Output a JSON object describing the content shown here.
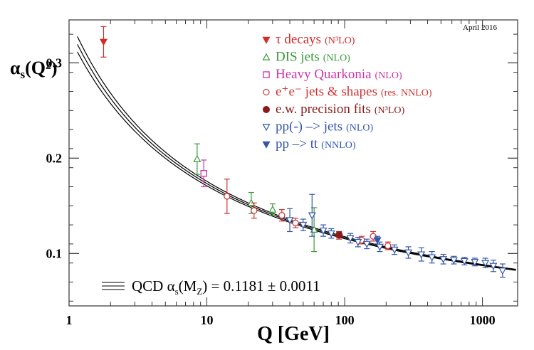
{
  "chart_data": {
    "type": "scatter",
    "date_label": "April 2016",
    "ylabel_main": "α",
    "ylabel_sub": "s",
    "ylabel_tail": "(Q²)",
    "xlabel": "Q [GeV]",
    "x_scale": "log",
    "xlim": [
      1,
      1800
    ],
    "ylim": [
      0.045,
      0.345
    ],
    "x_ticks": [
      {
        "value": 1,
        "label": "1"
      },
      {
        "value": 10,
        "label": "10"
      },
      {
        "value": 100,
        "label": "100"
      },
      {
        "value": 1000,
        "label": "1000"
      }
    ],
    "y_ticks": [
      {
        "value": 0.1,
        "label": "0.1"
      },
      {
        "value": 0.2,
        "label": "0.2"
      },
      {
        "value": 0.3,
        "label": "0.3"
      }
    ],
    "band_label": "QCD α",
    "band_label_sub": "s",
    "band_label_mid": "(M",
    "band_label_sub2": "Z",
    "band_label_tail": ") = 0.1181 ± 0.0011",
    "qcd_alpha_mz": 0.1181,
    "qcd_alpha_unc": 0.0011,
    "legend_placement": "top-center",
    "series": [
      {
        "name": "τ decays",
        "order": "(N³LO)",
        "marker": "tri-down-filled",
        "color": "#d42a2a",
        "points": [
          {
            "x": 1.78,
            "y": 0.322,
            "err": 0.016
          }
        ]
      },
      {
        "name": "DIS jets",
        "order": "(NLO)",
        "marker": "tri-up-open",
        "color": "#3a9a3a",
        "points": [
          {
            "x": 8.5,
            "y": 0.199,
            "err": 0.016
          },
          {
            "x": 21,
            "y": 0.153,
            "err": 0.011
          },
          {
            "x": 30,
            "y": 0.146,
            "err": 0.006
          },
          {
            "x": 60,
            "y": 0.125,
            "err": 0.023
          }
        ]
      },
      {
        "name": "Heavy Quarkonia",
        "order": "(NLO)",
        "marker": "square-open",
        "color": "#cc33aa",
        "points": [
          {
            "x": 9.5,
            "y": 0.184,
            "err": 0.014
          }
        ]
      },
      {
        "name": "e⁺e⁻ jets & shapes",
        "order": "(res. NNLO)",
        "marker": "circle-open",
        "color": "#cc3333",
        "points": [
          {
            "x": 14,
            "y": 0.16,
            "err": 0.018
          },
          {
            "x": 22,
            "y": 0.145,
            "err": 0.008
          },
          {
            "x": 35,
            "y": 0.14,
            "err": 0.006
          },
          {
            "x": 44,
            "y": 0.132,
            "err": 0.005
          },
          {
            "x": 91,
            "y": 0.119,
            "err": 0.004
          },
          {
            "x": 133,
            "y": 0.114,
            "err": 0.004
          },
          {
            "x": 161,
            "y": 0.118,
            "err": 0.005
          },
          {
            "x": 206,
            "y": 0.108,
            "err": 0.004
          }
        ]
      },
      {
        "name": "e.w. precision fits",
        "order": "(N³LO)",
        "marker": "circle-filled",
        "color": "#8b1a1a",
        "points": [
          {
            "x": 91.2,
            "y": 0.1196,
            "err": 0.003
          }
        ]
      },
      {
        "name": "pp(-) –> jets",
        "order": "(NLO)",
        "marker": "tri-down-open",
        "color": "#3355aa",
        "points": [
          {
            "x": 40,
            "y": 0.135,
            "err": 0.012
          },
          {
            "x": 50,
            "y": 0.13,
            "err": 0.006
          },
          {
            "x": 58,
            "y": 0.14,
            "err": 0.022
          },
          {
            "x": 70,
            "y": 0.124,
            "err": 0.006
          },
          {
            "x": 80,
            "y": 0.121,
            "err": 0.005
          },
          {
            "x": 110,
            "y": 0.116,
            "err": 0.005
          },
          {
            "x": 125,
            "y": 0.112,
            "err": 0.005
          },
          {
            "x": 145,
            "y": 0.11,
            "err": 0.005
          },
          {
            "x": 180,
            "y": 0.107,
            "err": 0.005
          },
          {
            "x": 230,
            "y": 0.104,
            "err": 0.005
          },
          {
            "x": 290,
            "y": 0.101,
            "err": 0.006
          },
          {
            "x": 360,
            "y": 0.099,
            "err": 0.007
          },
          {
            "x": 430,
            "y": 0.096,
            "err": 0.006
          },
          {
            "x": 520,
            "y": 0.094,
            "err": 0.005
          },
          {
            "x": 620,
            "y": 0.093,
            "err": 0.004
          },
          {
            "x": 740,
            "y": 0.092,
            "err": 0.004
          },
          {
            "x": 880,
            "y": 0.091,
            "err": 0.004
          },
          {
            "x": 1050,
            "y": 0.09,
            "err": 0.005
          },
          {
            "x": 1200,
            "y": 0.087,
            "err": 0.006
          },
          {
            "x": 1400,
            "y": 0.082,
            "err": 0.007
          }
        ]
      },
      {
        "name": "pp –> tt",
        "order": "(NNLO)",
        "marker": "tri-down-filled",
        "color": "#3355aa",
        "points": [
          {
            "x": 173,
            "y": 0.114,
            "err": 0.004
          }
        ]
      }
    ]
  }
}
